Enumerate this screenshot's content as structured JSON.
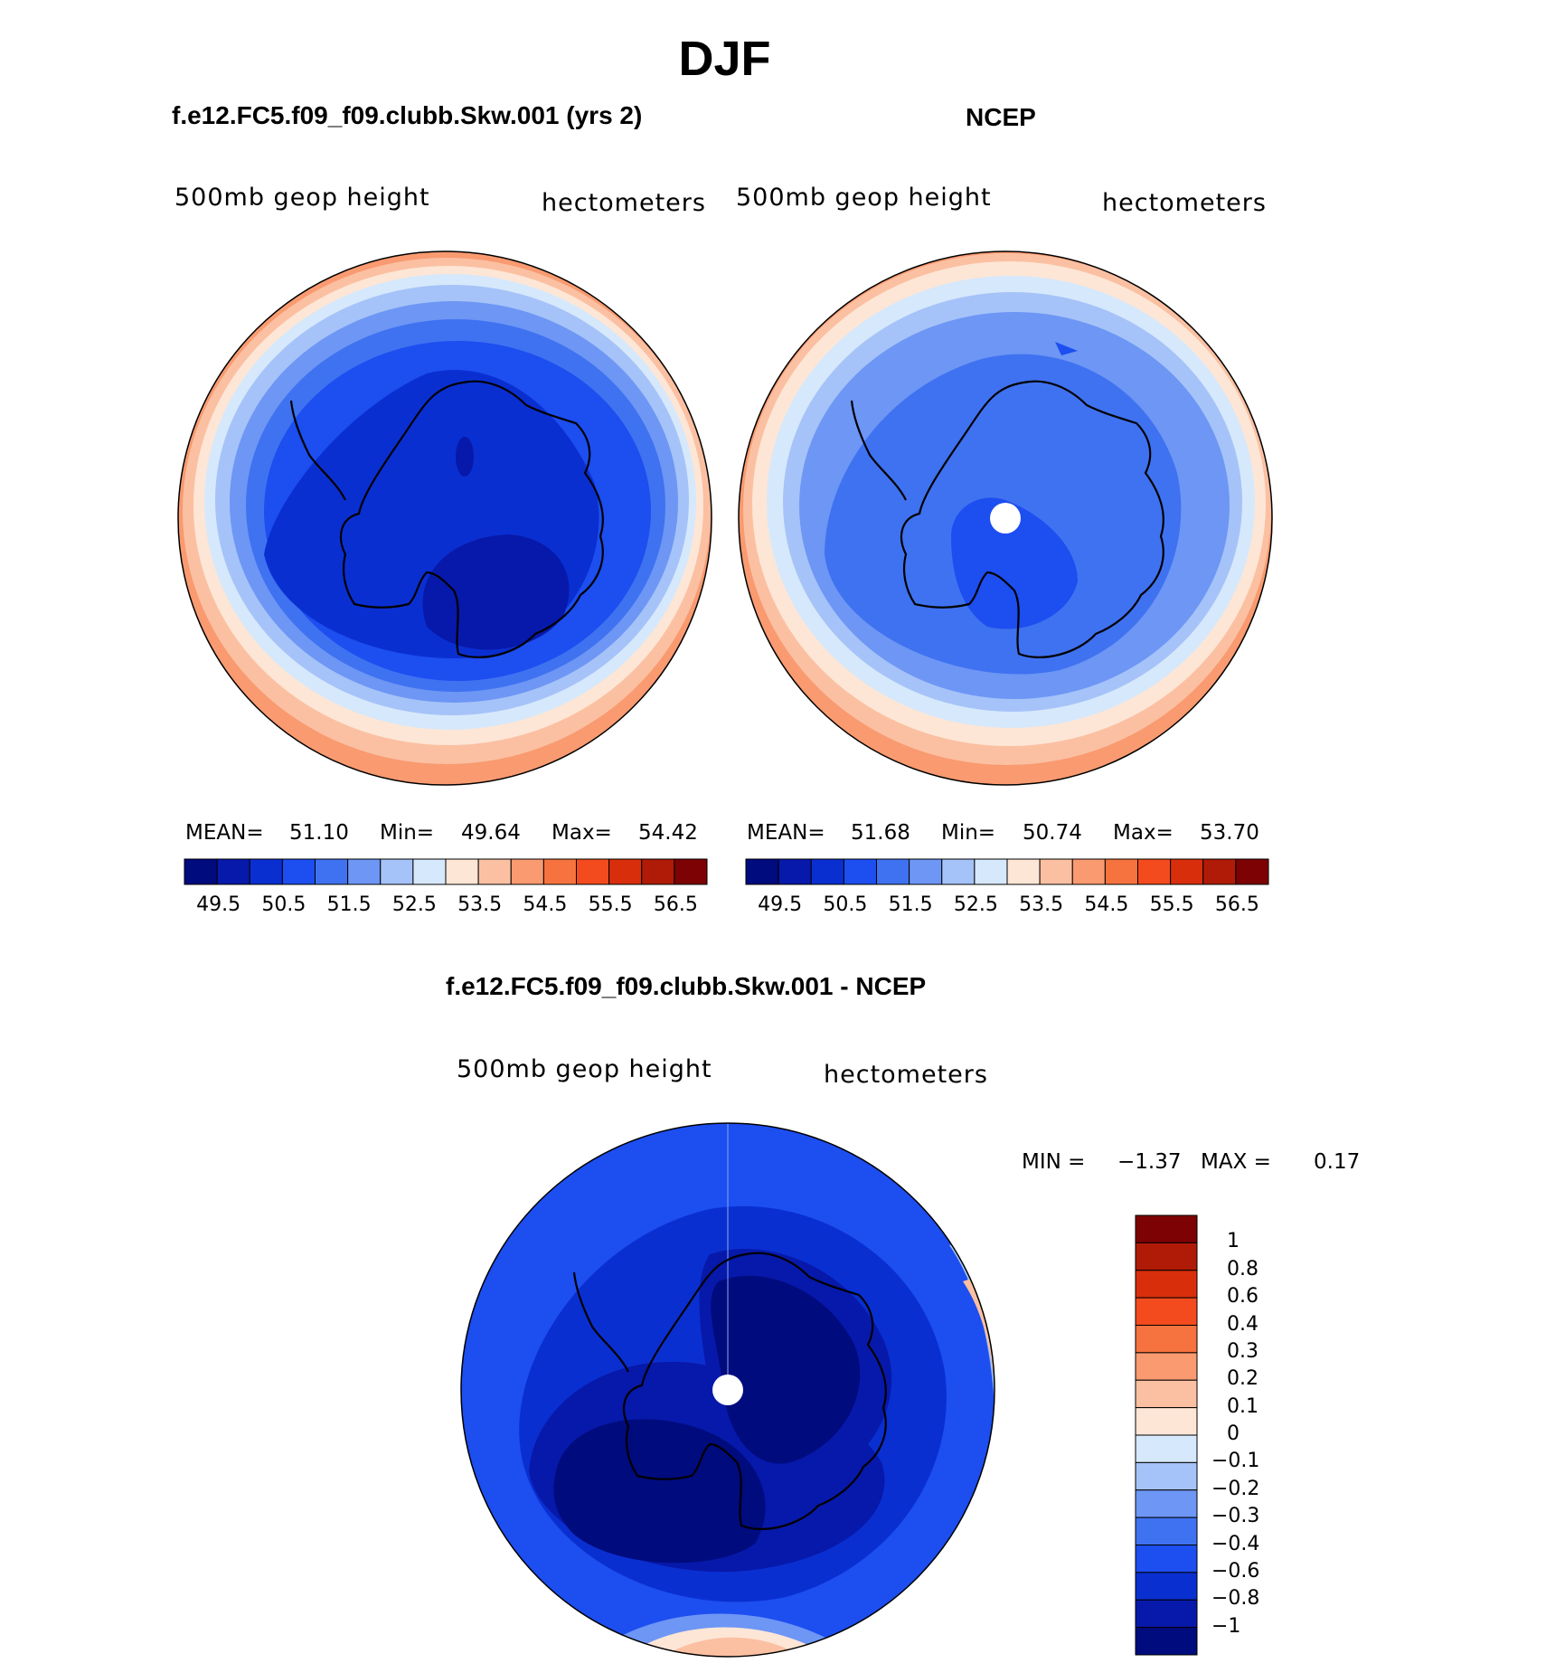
{
  "figure": {
    "season": "DJF",
    "colors": {
      "abs_scale": [
        "#000b7e",
        "#0719aa",
        "#0a2fd1",
        "#1c4ef0",
        "#3f72f0",
        "#6d96f5",
        "#a5c3f8",
        "#d6e8fb",
        "#fde6d6",
        "#fbc0a2",
        "#f99a70",
        "#f6723e",
        "#f44b1e",
        "#d92e0c",
        "#b01b08",
        "#7d0203"
      ],
      "diff_scale": [
        "#000b7e",
        "#0719aa",
        "#0a2fd1",
        "#1c4ef0",
        "#3f72f0",
        "#6d96f5",
        "#a5c3f8",
        "#d6e8fb",
        "#fde6d6",
        "#fbc0a2",
        "#f99a70",
        "#f6723e",
        "#f44b1e",
        "#d92e0c",
        "#b01b08",
        "#7d0203"
      ],
      "coastline": "#000000"
    }
  },
  "panels": [
    {
      "title": "f.e12.FC5.f09_f09.clubb.Skw.001 (yrs 2)",
      "field": "500mb geop height",
      "units": "hectometers",
      "mean_label": "MEAN=",
      "mean": "51.10",
      "min_label": "Min=",
      "min": "49.64",
      "max_label": "Max=",
      "max": "54.42",
      "colorbar_ticks": [
        "49.5",
        "50.5",
        "51.5",
        "52.5",
        "53.5",
        "54.5",
        "55.5",
        "56.5"
      ],
      "missing_pole": false
    },
    {
      "title": "NCEP",
      "field": "500mb geop height",
      "units": "hectometers",
      "mean_label": "MEAN=",
      "mean": "51.68",
      "min_label": "Min=",
      "min": "50.74",
      "max_label": "Max=",
      "max": "53.70",
      "colorbar_ticks": [
        "49.5",
        "50.5",
        "51.5",
        "52.5",
        "53.5",
        "54.5",
        "55.5",
        "56.5"
      ],
      "missing_pole": true
    },
    {
      "title": "f.e12.FC5.f09_f09.clubb.Skw.001 - NCEP",
      "field": "500mb geop height",
      "units": "hectometers",
      "min_label": "MIN =",
      "min": "−1.37",
      "max_label": "MAX =",
      "max": "0.17",
      "colorbar_ticks": [
        "1",
        "0.8",
        "0.6",
        "0.4",
        "0.3",
        "0.2",
        "0.1",
        "0",
        "−0.1",
        "−0.2",
        "−0.3",
        "−0.4",
        "−0.6",
        "−0.8",
        "−1"
      ],
      "missing_pole": true
    }
  ]
}
